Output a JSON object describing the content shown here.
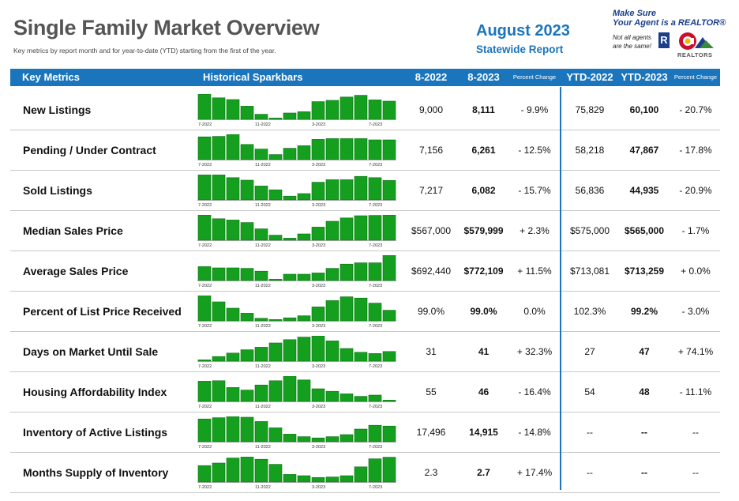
{
  "title": "Single Family Market Overview",
  "subtitle": "Key metrics by report month and for year-to-date (YTD) starting from the first of the year.",
  "report": {
    "month": "August 2023",
    "scope": "Statewide Report"
  },
  "logo": {
    "line1": "Make Sure",
    "line2": "Your Agent is a REALTOR®",
    "line3": "Not all agents",
    "line4": "are the same!",
    "r_mark": "R",
    "word": "REALTORS"
  },
  "header": {
    "metric": "Key Metrics",
    "spark": "Historical Sparkbars",
    "col1": "8-2022",
    "col2": "8-2023",
    "pct": "Percent Change",
    "ytd1": "YTD-2022",
    "ytd2": "YTD-2023",
    "pct2": "Percent Change"
  },
  "colors": {
    "accent": "#1b75bc",
    "bar": "#14a01e",
    "bar_edge": "#0b6e12",
    "title": "#555555"
  },
  "chart_data": {
    "type": "bar",
    "categories": [
      "7-2022",
      "8-2022",
      "9-2022",
      "10-2022",
      "11-2022",
      "12-2022",
      "1-2023",
      "2-2023",
      "3-2023",
      "4-2023",
      "5-2023",
      "6-2023",
      "7-2023",
      "8-2023"
    ],
    "tick_labels": [
      "7-2022",
      "11-2022",
      "3-2023",
      "7-2023"
    ],
    "tick_indices": [
      0,
      4,
      8,
      12
    ],
    "series": [
      {
        "name": "New Listings",
        "values": [
          1.0,
          0.85,
          0.78,
          0.52,
          0.2,
          0.05,
          0.25,
          0.3,
          0.7,
          0.75,
          0.88,
          0.95,
          0.77,
          0.72
        ]
      },
      {
        "name": "Pending / Under Contract",
        "values": [
          0.9,
          0.92,
          1.0,
          0.6,
          0.42,
          0.2,
          0.45,
          0.55,
          0.8,
          0.83,
          0.83,
          0.83,
          0.78,
          0.78
        ]
      },
      {
        "name": "Sold Listings",
        "values": [
          1.0,
          1.0,
          0.88,
          0.78,
          0.55,
          0.4,
          0.15,
          0.25,
          0.7,
          0.8,
          0.8,
          0.93,
          0.88,
          0.77
        ]
      },
      {
        "name": "Median Sales Price",
        "values": [
          1.0,
          0.85,
          0.8,
          0.7,
          0.45,
          0.2,
          0.08,
          0.25,
          0.52,
          0.75,
          0.88,
          0.97,
          0.98,
          1.0
        ]
      },
      {
        "name": "Average Sales Price",
        "values": [
          0.55,
          0.5,
          0.5,
          0.48,
          0.37,
          0.05,
          0.25,
          0.25,
          0.3,
          0.48,
          0.65,
          0.7,
          0.7,
          1.0
        ]
      },
      {
        "name": "Percent of List Price Received",
        "values": [
          1.0,
          0.75,
          0.5,
          0.3,
          0.1,
          0.05,
          0.12,
          0.2,
          0.55,
          0.8,
          0.95,
          0.9,
          0.7,
          0.42
        ]
      },
      {
        "name": "Days on Market Until Sale",
        "values": [
          0.05,
          0.18,
          0.32,
          0.45,
          0.55,
          0.72,
          0.85,
          0.95,
          1.0,
          0.8,
          0.5,
          0.35,
          0.3,
          0.38
        ]
      },
      {
        "name": "Housing Affordability Index",
        "values": [
          0.8,
          0.82,
          0.55,
          0.45,
          0.65,
          0.82,
          1.0,
          0.85,
          0.5,
          0.4,
          0.3,
          0.2,
          0.25,
          0.05
        ]
      },
      {
        "name": "Inventory of Active Listings",
        "values": [
          0.9,
          0.95,
          1.0,
          0.97,
          0.8,
          0.55,
          0.3,
          0.2,
          0.15,
          0.2,
          0.28,
          0.5,
          0.65,
          0.62
        ]
      },
      {
        "name": "Months Supply of Inventory",
        "values": [
          0.65,
          0.75,
          0.95,
          1.0,
          0.9,
          0.7,
          0.3,
          0.25,
          0.18,
          0.2,
          0.25,
          0.6,
          0.92,
          0.98
        ]
      }
    ]
  },
  "rows": [
    {
      "metric": "New Listings",
      "v2022": "9,000",
      "v2023": "8,111",
      "pct": "- 9.9%",
      "ytd2022": "75,829",
      "ytd2023": "60,100",
      "ytd_pct": "- 20.7%"
    },
    {
      "metric": "Pending / Under Contract",
      "v2022": "7,156",
      "v2023": "6,261",
      "pct": "- 12.5%",
      "ytd2022": "58,218",
      "ytd2023": "47,867",
      "ytd_pct": "- 17.8%"
    },
    {
      "metric": "Sold Listings",
      "v2022": "7,217",
      "v2023": "6,082",
      "pct": "- 15.7%",
      "ytd2022": "56,836",
      "ytd2023": "44,935",
      "ytd_pct": "- 20.9%"
    },
    {
      "metric": "Median Sales Price",
      "v2022": "$567,000",
      "v2023": "$579,999",
      "pct": "+ 2.3%",
      "ytd2022": "$575,000",
      "ytd2023": "$565,000",
      "ytd_pct": "- 1.7%"
    },
    {
      "metric": "Average Sales Price",
      "v2022": "$692,440",
      "v2023": "$772,109",
      "pct": "+ 11.5%",
      "ytd2022": "$713,081",
      "ytd2023": "$713,259",
      "ytd_pct": "+ 0.0%"
    },
    {
      "metric": "Percent of List Price Received",
      "v2022": "99.0%",
      "v2023": "99.0%",
      "pct": "0.0%",
      "ytd2022": "102.3%",
      "ytd2023": "99.2%",
      "ytd_pct": "- 3.0%"
    },
    {
      "metric": "Days on Market Until Sale",
      "v2022": "31",
      "v2023": "41",
      "pct": "+ 32.3%",
      "ytd2022": "27",
      "ytd2023": "47",
      "ytd_pct": "+ 74.1%"
    },
    {
      "metric": "Housing Affordability Index",
      "v2022": "55",
      "v2023": "46",
      "pct": "- 16.4%",
      "ytd2022": "54",
      "ytd2023": "48",
      "ytd_pct": "- 11.1%"
    },
    {
      "metric": "Inventory of Active Listings",
      "v2022": "17,496",
      "v2023": "14,915",
      "pct": "- 14.8%",
      "ytd2022": "--",
      "ytd2023": "--",
      "ytd_pct": "--"
    },
    {
      "metric": "Months Supply of Inventory",
      "v2022": "2.3",
      "v2023": "2.7",
      "pct": "+ 17.4%",
      "ytd2022": "--",
      "ytd2023": "--",
      "ytd_pct": "--"
    }
  ]
}
